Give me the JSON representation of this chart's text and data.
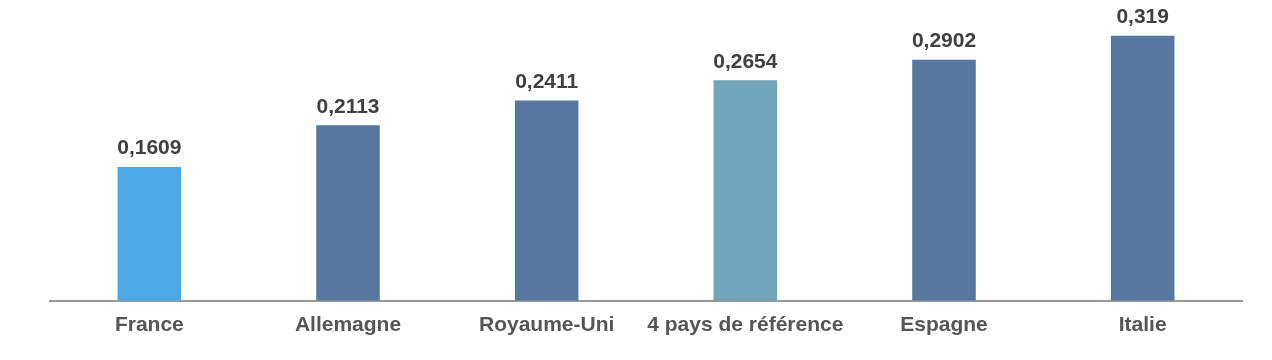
{
  "chart_data": {
    "type": "bar",
    "categories": [
      "France",
      "Allemagne",
      "Royaume-Uni",
      "4 pays de référence",
      "Espagne",
      "Italie"
    ],
    "values": [
      0.1609,
      0.2113,
      0.2411,
      0.2654,
      0.2902,
      0.319
    ],
    "colors": [
      "#4baae6",
      "#56789e",
      "#56789e",
      "#71a5b9",
      "#56789e",
      "#56789e"
    ],
    "value_labels": [
      "0,1609",
      "0,2113",
      "0,2411",
      "0,2654",
      "0,2902",
      "0,319"
    ],
    "grid": false,
    "legend": false
  }
}
